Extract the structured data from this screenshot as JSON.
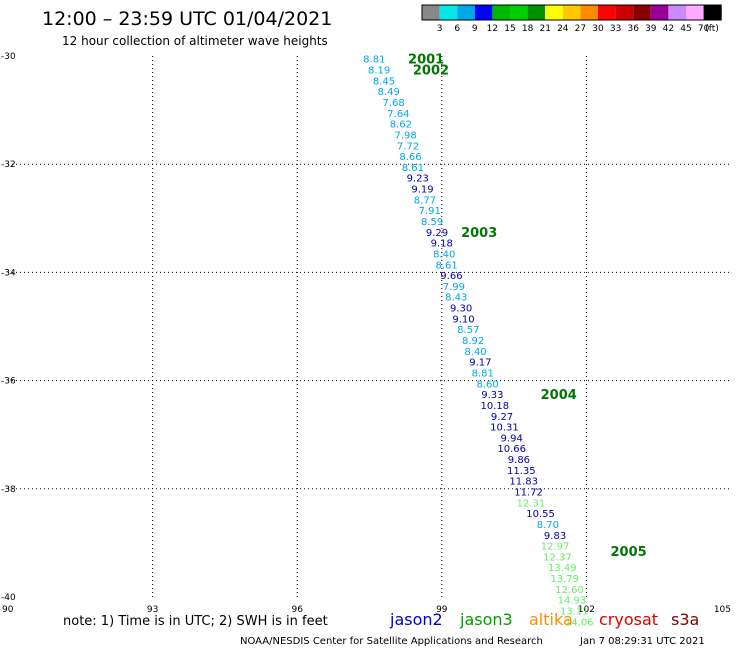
{
  "chart_data": {
    "type": "scatter",
    "title": "12:00 – 23:59 UTC 01/04/2021",
    "subtitle": "12 hour collection of altimeter wave heights",
    "x_axis": {
      "range": [
        90,
        105
      ],
      "ticks": [
        90,
        93,
        96,
        99,
        102,
        105
      ]
    },
    "y_axis": {
      "range": [
        -40,
        -30
      ],
      "ticks": [
        -30,
        -32,
        -34,
        -36,
        -38,
        -40
      ]
    },
    "grid": "dotted",
    "colorbar": {
      "unit": "(ft)",
      "labels": [
        "3",
        "6",
        "9",
        "12",
        "15",
        "18",
        "21",
        "24",
        "27",
        "30",
        "33",
        "36",
        "39",
        "42",
        "45",
        "70"
      ],
      "colors": [
        "#888888",
        "#00e8e8",
        "#00a8e8",
        "#0000ff",
        "#00b800",
        "#00d000",
        "#009000",
        "#ffff00",
        "#ffc800",
        "#ff8c00",
        "#ff0000",
        "#cc0000",
        "#880000",
        "#990099",
        "#cc88ff",
        "#ffaaff",
        "#000000"
      ]
    },
    "points": [
      {
        "x": 97.6,
        "y": -30.05,
        "label": "8.81",
        "color": "#00a8e8"
      },
      {
        "x": 97.7,
        "y": -30.25,
        "label": "8.19",
        "color": "#00a8e8"
      },
      {
        "x": 97.8,
        "y": -30.45,
        "label": "8.45",
        "color": "#00a8e8"
      },
      {
        "x": 97.9,
        "y": -30.65,
        "label": "8.49",
        "color": "#00a8e8"
      },
      {
        "x": 98.0,
        "y": -30.85,
        "label": "7.68",
        "color": "#00a8e8"
      },
      {
        "x": 98.1,
        "y": -31.05,
        "label": "7.64",
        "color": "#00a8e8"
      },
      {
        "x": 98.15,
        "y": -31.25,
        "label": "8.62",
        "color": "#00a8e8"
      },
      {
        "x": 98.25,
        "y": -31.45,
        "label": "7.98",
        "color": "#00a8e8"
      },
      {
        "x": 98.3,
        "y": -31.65,
        "label": "7.72",
        "color": "#00a8e8"
      },
      {
        "x": 98.35,
        "y": -31.85,
        "label": "8.66",
        "color": "#00a8e8"
      },
      {
        "x": 98.4,
        "y": -32.05,
        "label": "8.61",
        "color": "#00a8e8"
      },
      {
        "x": 98.5,
        "y": -32.25,
        "label": "9.23",
        "color": "#0000aa"
      },
      {
        "x": 98.6,
        "y": -32.45,
        "label": "9.19",
        "color": "#0000aa"
      },
      {
        "x": 98.65,
        "y": -32.65,
        "label": "8.77",
        "color": "#00a8e8"
      },
      {
        "x": 98.75,
        "y": -32.85,
        "label": "7.91",
        "color": "#00a8e8"
      },
      {
        "x": 98.8,
        "y": -33.05,
        "label": "8.59",
        "color": "#00a8e8"
      },
      {
        "x": 98.9,
        "y": -33.25,
        "label": "9.29",
        "color": "#0000aa"
      },
      {
        "x": 99.0,
        "y": -33.45,
        "label": "9.18",
        "color": "#0000aa"
      },
      {
        "x": 99.05,
        "y": -33.65,
        "label": "8.40",
        "color": "#00a8e8"
      },
      {
        "x": 99.1,
        "y": -33.85,
        "label": "8.61",
        "color": "#00a8e8"
      },
      {
        "x": 99.2,
        "y": -34.05,
        "label": "9.66",
        "color": "#0000aa"
      },
      {
        "x": 99.25,
        "y": -34.25,
        "label": "7.99",
        "color": "#00a8e8"
      },
      {
        "x": 99.3,
        "y": -34.45,
        "label": "8.43",
        "color": "#00a8e8"
      },
      {
        "x": 99.4,
        "y": -34.65,
        "label": "9.30",
        "color": "#0000aa"
      },
      {
        "x": 99.45,
        "y": -34.85,
        "label": "9.10",
        "color": "#0000aa"
      },
      {
        "x": 99.55,
        "y": -35.05,
        "label": "8.57",
        "color": "#00a8e8"
      },
      {
        "x": 99.65,
        "y": -35.25,
        "label": "8.92",
        "color": "#00a8e8"
      },
      {
        "x": 99.7,
        "y": -35.45,
        "label": "8.40",
        "color": "#00a8e8"
      },
      {
        "x": 99.8,
        "y": -35.65,
        "label": "9.17",
        "color": "#0000aa"
      },
      {
        "x": 99.85,
        "y": -35.85,
        "label": "8.81",
        "color": "#00a8e8"
      },
      {
        "x": 99.95,
        "y": -36.05,
        "label": "8.60",
        "color": "#00a8e8"
      },
      {
        "x": 100.05,
        "y": -36.25,
        "label": "9.33",
        "color": "#0000aa"
      },
      {
        "x": 100.1,
        "y": -36.45,
        "label": "10.18",
        "color": "#0000aa"
      },
      {
        "x": 100.25,
        "y": -36.65,
        "label": "9.27",
        "color": "#0000aa"
      },
      {
        "x": 100.3,
        "y": -36.85,
        "label": "10.31",
        "color": "#0000aa"
      },
      {
        "x": 100.45,
        "y": -37.05,
        "label": "9.94",
        "color": "#0000aa"
      },
      {
        "x": 100.45,
        "y": -37.25,
        "label": "10.66",
        "color": "#0000aa"
      },
      {
        "x": 100.6,
        "y": -37.45,
        "label": "9.86",
        "color": "#0000aa"
      },
      {
        "x": 100.65,
        "y": -37.65,
        "label": "11.35",
        "color": "#0000aa"
      },
      {
        "x": 100.7,
        "y": -37.85,
        "label": "11.83",
        "color": "#0000aa"
      },
      {
        "x": 100.8,
        "y": -38.05,
        "label": "11.72",
        "color": "#0000aa"
      },
      {
        "x": 100.85,
        "y": -38.25,
        "label": "12.31",
        "color": "#66ee66"
      },
      {
        "x": 101.05,
        "y": -38.45,
        "label": "10.55",
        "color": "#0000aa"
      },
      {
        "x": 101.2,
        "y": -38.65,
        "label": "8.70",
        "color": "#00a8e8"
      },
      {
        "x": 101.35,
        "y": -38.85,
        "label": "9.83",
        "color": "#0000aa"
      },
      {
        "x": 101.35,
        "y": -39.05,
        "label": "12.97",
        "color": "#66ee66"
      },
      {
        "x": 101.4,
        "y": -39.25,
        "label": "12.37",
        "color": "#66ee66"
      },
      {
        "x": 101.5,
        "y": -39.45,
        "label": "13.49",
        "color": "#66ee66"
      },
      {
        "x": 101.55,
        "y": -39.65,
        "label": "13.79",
        "color": "#66ee66"
      },
      {
        "x": 101.65,
        "y": -39.85,
        "label": "12.60",
        "color": "#66ee66"
      },
      {
        "x": 101.7,
        "y": -40.05,
        "label": "14.93",
        "color": "#66ee66"
      },
      {
        "x": 101.75,
        "y": -40.25,
        "label": "13.11",
        "color": "#66ee66"
      },
      {
        "x": 101.85,
        "y": -40.45,
        "label": "14.06",
        "color": "#66ee66"
      }
    ],
    "annotations": [
      {
        "x": 98.3,
        "y": -30.05,
        "text": "2001"
      },
      {
        "x": 98.4,
        "y": -30.25,
        "text": "2002"
      },
      {
        "x": 99.4,
        "y": -33.25,
        "text": "2003"
      },
      {
        "x": 101.05,
        "y": -36.25,
        "text": "2004"
      },
      {
        "x": 102.5,
        "y": -39.15,
        "text": "2005"
      }
    ]
  },
  "footer": {
    "note": "note:  1) Time is in UTC;  2) SWH is in feet",
    "legend": [
      {
        "name": "jason2",
        "color": "#0000cc"
      },
      {
        "name": "jason3",
        "color": "#00a000"
      },
      {
        "name": "altika",
        "color": "#ff8c00"
      },
      {
        "name": "cryosat",
        "color": "#dd0000"
      },
      {
        "name": "s3a",
        "color": "#880000"
      }
    ],
    "credit": "NOAA/NESDIS Center for Satellite Applications and Research",
    "timestamp": "Jan  7 08:29:31 UTC 2021"
  }
}
